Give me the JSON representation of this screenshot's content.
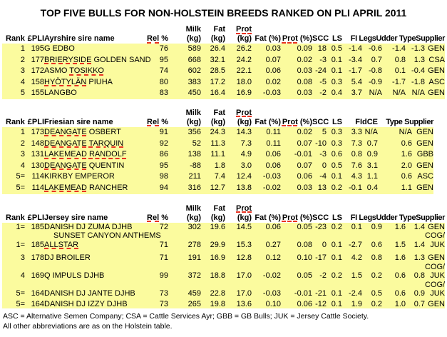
{
  "title": "TOP FIVE BULLS FOR NON-HOLSTEIN BREEDS RANKED ON PLI APRIL 2011",
  "colors": {
    "row_bg": "#FBFB9E",
    "squiggle": "#E83322"
  },
  "header_labels": {
    "rank": "Rank",
    "pli": "£PLI",
    "rel": [
      [
        "Rel",
        1
      ],
      [
        " %",
        0
      ]
    ],
    "milk_top": "Milk",
    "fat_top": "Fat",
    "prot_top": [
      [
        "Prot",
        1
      ]
    ],
    "kg": "(kg)",
    "fatp": "Fat (%)",
    "protp": [
      [
        "Prot",
        1
      ],
      [
        " (%)",
        0
      ]
    ],
    "scc": "SCC",
    "ls": "LS",
    "fi": "FI",
    "dce": "dCE"
  },
  "sections": [
    {
      "breed_header": "Ayrshire sire name",
      "col_keys": [
        "rank",
        "pli",
        "name",
        "rel",
        "milk",
        "fat",
        "prot",
        "fatp",
        "protp",
        "scc",
        "ls",
        "fi",
        "legs",
        "udder",
        "type",
        "sup"
      ],
      "tail_keys": [
        "fi",
        "legs",
        "udder",
        "type",
        "sup"
      ],
      "tail_text": "FI LegsUdder TypeSupplier",
      "rows": [
        {
          "rank": "1",
          "pli": "195",
          "name": [
            [
              "G EDBO",
              0
            ]
          ],
          "rel": "76",
          "milk": "589",
          "fat": "26.4",
          "prot": "26.2",
          "fatp": "0.03",
          "protp": "0.09",
          "scc": "18",
          "ls": "0.5",
          "fi": "-1.4",
          "legs": "-0.6",
          "udder": "-1.4",
          "type": "-1.3",
          "sup": "GEN"
        },
        {
          "rank": "2",
          "pli": "177",
          "name": [
            [
              "BRIERYSIDE",
              1
            ],
            [
              " GOLDEN SAND",
              0
            ]
          ],
          "rel": "95",
          "milk": "668",
          "fat": "32.1",
          "prot": "24.2",
          "fatp": "0.07",
          "protp": "0.02",
          "scc": "-3",
          "ls": "0.1",
          "fi": "-3.4",
          "legs": "0.7",
          "udder": "0.8",
          "type": "1.3",
          "sup": "CSA"
        },
        {
          "rank": "3",
          "pli": "172",
          "name": [
            [
              "ASMO ",
              0
            ],
            [
              "TOSIKKO",
              1
            ]
          ],
          "rel": "74",
          "milk": "602",
          "fat": "28.5",
          "prot": "22.1",
          "fatp": "0.06",
          "protp": "0.03",
          "scc": "-24",
          "ls": "0.1",
          "fi": "-1.7",
          "legs": "-0.8",
          "udder": "0.1",
          "type": "-0.4",
          "sup": "GEN"
        },
        {
          "rank": "4",
          "pli": "158",
          "name": [
            [
              "HYÖTYLÄN",
              1
            ],
            [
              " PIUHA",
              0
            ]
          ],
          "rel": "80",
          "milk": "383",
          "fat": "17.2",
          "prot": "18.0",
          "fatp": "0.02",
          "protp": "0.08",
          "scc": "-5",
          "ls": "0.3",
          "fi": "5.4",
          "legs": "-0.9",
          "udder": "-1.7",
          "type": "-1.8",
          "sup": "ASC"
        },
        {
          "rank": "5",
          "pli": "155",
          "name": [
            [
              "LANGBO",
              0
            ]
          ],
          "rel": "83",
          "milk": "450",
          "fat": "16.4",
          "prot": "16.9",
          "fatp": "-0.03",
          "protp": "0.03",
          "scc": "-2",
          "ls": "0.4",
          "fi": "3.7",
          "legs": "N/A",
          "udder": "N/A",
          "type": "N/A",
          "sup": "GEN"
        }
      ]
    },
    {
      "breed_header": "Friesian sire name",
      "col_keys": [
        "rank",
        "pli",
        "name",
        "rel",
        "milk",
        "fat",
        "prot",
        "fatp",
        "protp",
        "scc",
        "ls",
        "fi",
        "dce",
        "type",
        "sup"
      ],
      "tail_keys": [
        "type",
        "sup"
      ],
      "tail_text": "Type Supplier",
      "rows": [
        {
          "rank": "1",
          "pli": "173",
          "name": [
            [
              "DEANGATE",
              1
            ],
            [
              " OSBERT",
              0
            ]
          ],
          "rel": "91",
          "milk": "356",
          "fat": "24.3",
          "prot": "14.3",
          "fatp": "0.11",
          "protp": "0.02",
          "scc": "5",
          "ls": "0.3",
          "fi": "3.3",
          "dce": "N/A",
          "type": "N/A",
          "sup": "GEN"
        },
        {
          "rank": "2",
          "pli": "148",
          "name": [
            [
              "DEANGATE",
              1
            ],
            [
              " ",
              0
            ],
            [
              "TARQUIN",
              1
            ]
          ],
          "rel": "92",
          "milk": "52",
          "fat": "11.3",
          "prot": "7.3",
          "fatp": "0.11",
          "protp": "0.07",
          "scc": "-10",
          "ls": "0.3",
          "fi": "7.3",
          "dce": "0.7",
          "type": "0.6",
          "sup": "GEN"
        },
        {
          "rank": "3",
          "pli": "131",
          "name": [
            [
              "LAKEMEAD",
              1
            ],
            [
              " ",
              0
            ],
            [
              "RANDOLF",
              1
            ]
          ],
          "rel": "86",
          "milk": "138",
          "fat": "11.1",
          "prot": "4.9",
          "fatp": "0.06",
          "protp": "-0.01",
          "scc": "-3",
          "ls": "0.6",
          "fi": "0.8",
          "dce": "0.9",
          "type": "1.6",
          "sup": "GBB"
        },
        {
          "rank": "4",
          "pli": "130",
          "name": [
            [
              "DEANGATE",
              1
            ],
            [
              " QUENTIN",
              0
            ]
          ],
          "rel": "95",
          "milk": "-88",
          "fat": "1.8",
          "prot": "3.0",
          "fatp": "0.06",
          "protp": "0.07",
          "scc": "0",
          "ls": "0.5",
          "fi": "7.6",
          "dce": "3.1",
          "type": "2.0",
          "sup": "GEN"
        },
        {
          "rank": "5=",
          "pli": "114",
          "name": [
            [
              "KIRKBY EMPEROR",
              0
            ]
          ],
          "rel": "98",
          "milk": "211",
          "fat": "7.4",
          "prot": "12.4",
          "fatp": "-0.03",
          "protp": "0.06",
          "scc": "-4",
          "ls": "0.1",
          "fi": "4.3",
          "dce": "1.1",
          "type": "0.6",
          "sup": "ASC"
        },
        {
          "rank": "5=",
          "pli": "114",
          "name": [
            [
              "LAKEMEAD",
              1
            ],
            [
              " RANCHER",
              0
            ]
          ],
          "rel": "94",
          "milk": "316",
          "fat": "12.7",
          "prot": "13.8",
          "fatp": "-0.02",
          "protp": "0.03",
          "scc": "13",
          "ls": "0.2",
          "fi": "-0.1",
          "dce": "0.4",
          "type": "1.1",
          "sup": "GEN"
        }
      ]
    },
    {
      "breed_header": "Jersey sire name",
      "col_keys": [
        "rank",
        "pli",
        "name",
        "rel",
        "milk",
        "fat",
        "prot",
        "fatp",
        "protp",
        "scc",
        "ls",
        "fi",
        "legs",
        "udder",
        "type",
        "sup"
      ],
      "tail_keys": [
        "fi",
        "legs",
        "udder",
        "type",
        "sup"
      ],
      "tail_text": "FI LegsUdder TypeSupplier",
      "rows": [
        {
          "rank": "1=",
          "pli": "185",
          "name": [
            [
              "DANISH DJ ZUMA DJHB",
              0
            ]
          ],
          "name2": "SUNSET CANYON ANTHEMS",
          "rel": "72",
          "milk": "302",
          "fat": "19.6",
          "prot": "14.5",
          "fatp": "0.06",
          "protp": "0.05",
          "scc": "-23",
          "ls": "0.2",
          "fi": "0.1",
          "legs": "0.9",
          "udder": "1.6",
          "type": "1.4",
          "sup": "GEN",
          "sup2": "COG/"
        },
        {
          "rank": "1=",
          "pli": "185",
          "name": [
            [
              "ALLSTAR",
              1
            ]
          ],
          "rel": "71",
          "milk": "278",
          "fat": "29.9",
          "prot": "15.3",
          "fatp": "0.27",
          "protp": "0.08",
          "scc": "0",
          "ls": "0.1",
          "fi": "-2.7",
          "legs": "0.6",
          "udder": "1.5",
          "type": "1.4",
          "sup": "JUK"
        },
        {
          "rank": "3",
          "pli": "178",
          "name": [
            [
              "DJ BROILER",
              0
            ]
          ],
          "rel": "71",
          "milk": "191",
          "fat": "16.9",
          "prot": "12.8",
          "fatp": "0.12",
          "protp": "0.10",
          "scc": "-17",
          "ls": "0.1",
          "fi": "4.2",
          "legs": "0.8",
          "udder": "1.6",
          "type": "1.3",
          "sup": "GEN",
          "sup2": "COG/"
        },
        {
          "rank": "4",
          "pli": "169",
          "name": [
            [
              "Q IMPULS DJHB",
              0
            ]
          ],
          "rel": "99",
          "milk": "372",
          "fat": "18.8",
          "prot": "17.0",
          "fatp": "-0.02",
          "protp": "0.05",
          "scc": "-2",
          "ls": "0.2",
          "fi": "1.5",
          "legs": "0.2",
          "udder": "0.6",
          "type": "0.8",
          "sup": "JUK",
          "sup2": "COG/"
        },
        {
          "rank": "5=",
          "pli": "164",
          "name": [
            [
              "DANISH DJ JANTE DJHB",
              0
            ]
          ],
          "rel": "73",
          "milk": "459",
          "fat": "22.8",
          "prot": "17.0",
          "fatp": "-0.03",
          "protp": "-0.01",
          "scc": "-21",
          "ls": "0.1",
          "fi": "-2.4",
          "legs": "0.5",
          "udder": "0.6",
          "type": "0.9",
          "sup": "JUK"
        },
        {
          "rank": "5=",
          "pli": "164",
          "name": [
            [
              "DANISH DJ IZZY DJHB",
              0
            ]
          ],
          "rel": "73",
          "milk": "265",
          "fat": "19.8",
          "prot": "13.6",
          "fatp": "0.10",
          "protp": "0.06",
          "scc": "-12",
          "ls": "0.1",
          "fi": "1.9",
          "legs": "0.2",
          "udder": "1.0",
          "type": "0.7",
          "sup": "GEN"
        }
      ]
    }
  ],
  "footnote": {
    "line1": "ASC = Alternative Semen Company; CSA = Cattle Services Ayr; GBB = GB Bulls; JUK = Jersey Cattle Society.",
    "line2": "All other abbreviations are as on the Holstein table."
  }
}
